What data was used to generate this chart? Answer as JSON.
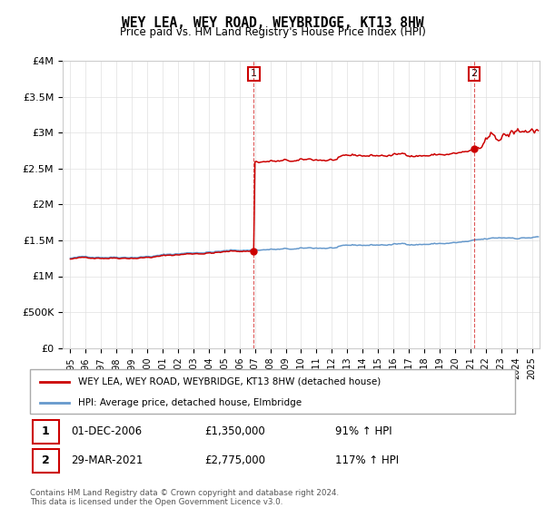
{
  "title": "WEY LEA, WEY ROAD, WEYBRIDGE, KT13 8HW",
  "subtitle": "Price paid vs. HM Land Registry's House Price Index (HPI)",
  "red_label": "WEY LEA, WEY ROAD, WEYBRIDGE, KT13 8HW (detached house)",
  "blue_label": "HPI: Average price, detached house, Elmbridge",
  "transactions": [
    {
      "num": 1,
      "date": "01-DEC-2006",
      "price": "£1,350,000",
      "hpi": "91% ↑ HPI",
      "x_year": 2006.92
    },
    {
      "num": 2,
      "date": "29-MAR-2021",
      "price": "£2,775,000",
      "hpi": "117% ↑ HPI",
      "x_year": 2021.25
    }
  ],
  "footnote": "Contains HM Land Registry data © Crown copyright and database right 2024.\nThis data is licensed under the Open Government Licence v3.0.",
  "ylim": [
    0,
    4000000
  ],
  "yticks": [
    0,
    500000,
    1000000,
    1500000,
    2000000,
    2500000,
    3000000,
    3500000,
    4000000
  ],
  "ytick_labels": [
    "£0",
    "£500K",
    "£1M",
    "£1.5M",
    "£2M",
    "£2.5M",
    "£3M",
    "£3.5M",
    "£4M"
  ],
  "xlim_start": 1994.5,
  "xlim_end": 2025.5,
  "background_color": "#ffffff",
  "grid_color": "#e0e0e0",
  "red_color": "#cc0000",
  "blue_color": "#6699cc",
  "transaction1_x": 2006.92,
  "transaction2_x": 2021.25,
  "transaction1_y": 1350000,
  "transaction2_y": 2775000
}
